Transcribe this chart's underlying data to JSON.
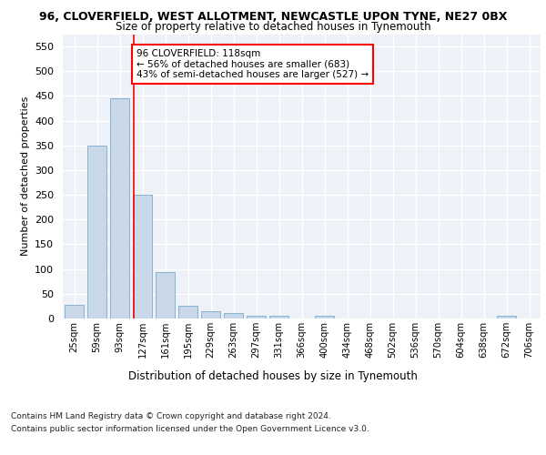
{
  "title": "96, CLOVERFIELD, WEST ALLOTMENT, NEWCASTLE UPON TYNE, NE27 0BX",
  "subtitle": "Size of property relative to detached houses in Tynemouth",
  "xlabel": "Distribution of detached houses by size in Tynemouth",
  "ylabel": "Number of detached properties",
  "bar_color": "#c8d8e8",
  "bar_edge_color": "#7aaaca",
  "categories": [
    "25sqm",
    "59sqm",
    "93sqm",
    "127sqm",
    "161sqm",
    "195sqm",
    "229sqm",
    "263sqm",
    "297sqm",
    "331sqm",
    "366sqm",
    "400sqm",
    "434sqm",
    "468sqm",
    "502sqm",
    "536sqm",
    "570sqm",
    "604sqm",
    "638sqm",
    "672sqm",
    "706sqm"
  ],
  "values": [
    28,
    350,
    445,
    250,
    93,
    25,
    14,
    11,
    6,
    6,
    0,
    6,
    0,
    0,
    0,
    0,
    0,
    0,
    0,
    6,
    0
  ],
  "ylim": [
    0,
    575
  ],
  "yticks": [
    0,
    50,
    100,
    150,
    200,
    250,
    300,
    350,
    400,
    450,
    500,
    550
  ],
  "marker_label": "96 CLOVERFIELD: 118sqm",
  "annotation_line1": "← 56% of detached houses are smaller (683)",
  "annotation_line2": "43% of semi-detached houses are larger (527) →",
  "vline_position": 2.62,
  "background_color": "#eef2f8",
  "footer_line1": "Contains HM Land Registry data © Crown copyright and database right 2024.",
  "footer_line2": "Contains public sector information licensed under the Open Government Licence v3.0."
}
